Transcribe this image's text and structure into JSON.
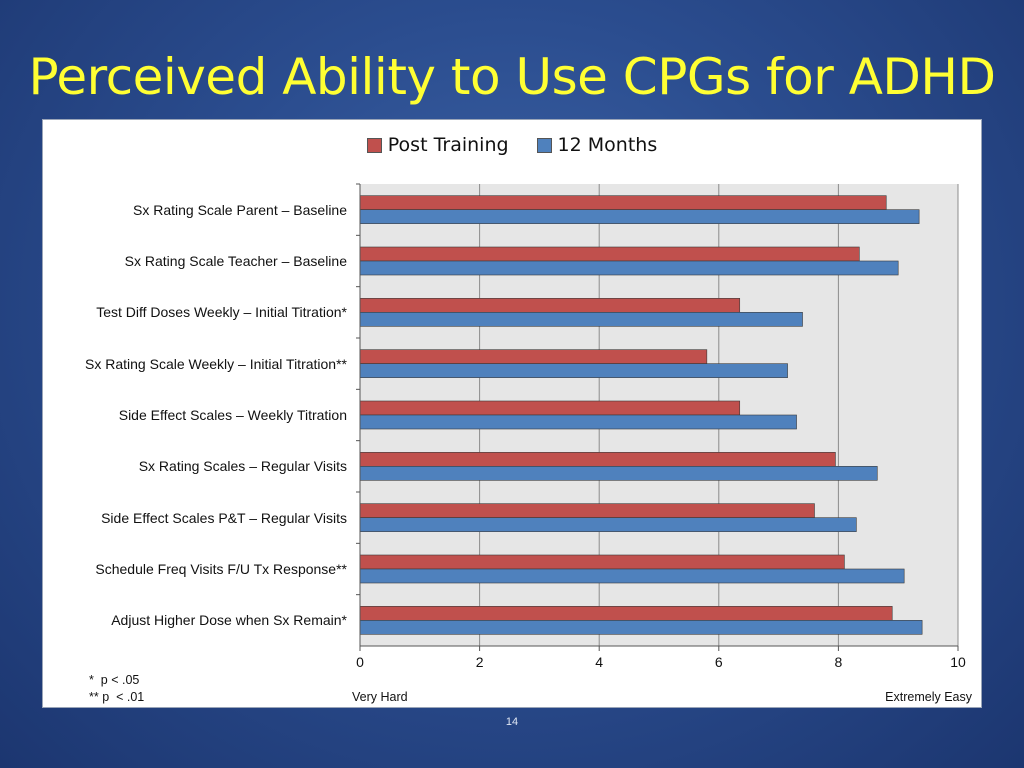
{
  "slide": {
    "title": "Perceived Ability to Use CPGs for ADHD",
    "page_number": "14"
  },
  "colors": {
    "post_training": "#c0504d",
    "twelve_months": "#4f81bd",
    "plot_background": "#e6e6e6",
    "title": "#ffff33"
  },
  "chart_data": {
    "type": "bar",
    "orientation": "horizontal",
    "categories": [
      "Sx Rating Scale Parent – Baseline",
      "Sx Rating Scale Teacher – Baseline",
      "Test Diff Doses Weekly – Initial Titration*",
      "Sx Rating Scale Weekly – Initial Titration**",
      "Side Effect Scales – Weekly Titration",
      "Sx Rating Scales – Regular Visits",
      "Side Effect Scales P&T – Regular Visits",
      "Schedule Freq Visits F/U Tx Response**",
      "Adjust Higher Dose when Sx Remain*"
    ],
    "series": [
      {
        "name": "Post Training",
        "values": [
          8.8,
          8.35,
          6.35,
          5.8,
          6.35,
          7.95,
          7.6,
          8.1,
          8.9
        ]
      },
      {
        "name": "12 Months",
        "values": [
          9.35,
          9.0,
          7.4,
          7.15,
          7.3,
          8.65,
          8.3,
          9.1,
          9.4
        ]
      }
    ],
    "xlim": [
      0,
      10
    ],
    "x_ticks": [
      "0",
      "2",
      "4",
      "6",
      "8",
      "10"
    ],
    "x_min_label": "Very Hard",
    "x_max_label": "Extremely Easy",
    "grid": true,
    "legend_position": "top-center"
  },
  "footnotes": [
    "*  p < .05",
    "** p  < .01"
  ]
}
